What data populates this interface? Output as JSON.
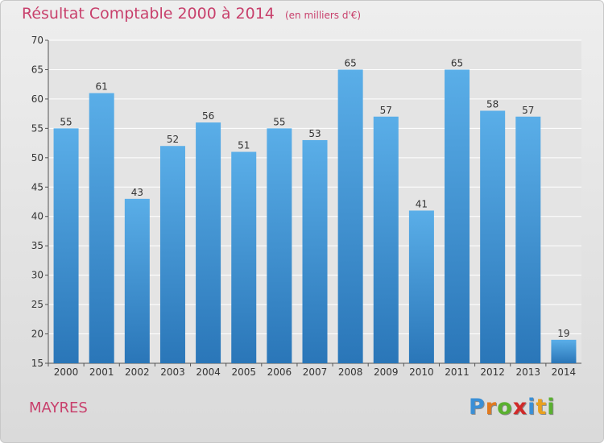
{
  "chart_data": {
    "type": "bar",
    "title": "Résultat Comptable 2000 à 2014",
    "subtitle": "(en milliers d'€)",
    "categories": [
      "2000",
      "2001",
      "2002",
      "2003",
      "2004",
      "2005",
      "2006",
      "2007",
      "2008",
      "2009",
      "2010",
      "2011",
      "2012",
      "2013",
      "2014"
    ],
    "values": [
      55,
      61,
      43,
      52,
      56,
      51,
      55,
      53,
      65,
      57,
      41,
      65,
      58,
      57,
      19
    ],
    "ylim": [
      15,
      70
    ],
    "yticks": [
      15,
      20,
      25,
      30,
      35,
      40,
      45,
      50,
      55,
      60,
      65,
      70
    ],
    "grid": true,
    "bar_color_top": "#5aaee8",
    "bar_color_bottom": "#2a76b8"
  },
  "footer": {
    "commune": "MAYRES",
    "logo_letters": [
      {
        "ch": "P",
        "color": "#3a8fd6"
      },
      {
        "ch": "r",
        "color": "#e07a20"
      },
      {
        "ch": "o",
        "color": "#5ab030"
      },
      {
        "ch": "x",
        "color": "#d02a2a"
      },
      {
        "ch": "i",
        "color": "#3a8fd6"
      },
      {
        "ch": "t",
        "color": "#e8a020"
      },
      {
        "ch": "i",
        "color": "#5ab030"
      }
    ]
  }
}
